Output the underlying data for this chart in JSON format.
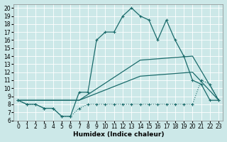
{
  "xlabel": "Humidex (Indice chaleur)",
  "background_color": "#cce8e8",
  "grid_color": "#b8d8d8",
  "line_color": "#1a6b6b",
  "xlim": [
    -0.5,
    23.5
  ],
  "ylim": [
    6,
    20.5
  ],
  "xticks": [
    0,
    1,
    2,
    3,
    4,
    5,
    6,
    7,
    8,
    9,
    10,
    11,
    12,
    13,
    14,
    15,
    16,
    17,
    18,
    19,
    20,
    21,
    22,
    23
  ],
  "yticks": [
    6,
    7,
    8,
    9,
    10,
    11,
    12,
    13,
    14,
    15,
    16,
    17,
    18,
    19,
    20
  ],
  "curve1_x": [
    0,
    1,
    2,
    3,
    4,
    5,
    6,
    7,
    8,
    9,
    10,
    11,
    12,
    13,
    14,
    15,
    16,
    17,
    18,
    19,
    20,
    21,
    22,
    23
  ],
  "curve1_y": [
    8.5,
    8.0,
    8.0,
    7.5,
    7.5,
    6.5,
    6.5,
    9.5,
    9.5,
    16.0,
    17.0,
    17.0,
    19.0,
    20.0,
    19.0,
    18.5,
    16.0,
    18.5,
    16.0,
    14.0,
    11.0,
    10.5,
    8.5,
    8.5
  ],
  "curve2_x": [
    0,
    1,
    2,
    3,
    4,
    5,
    6,
    7,
    8,
    9,
    10,
    11,
    12,
    13,
    14,
    15,
    16,
    17,
    18,
    19,
    20,
    21,
    22,
    23
  ],
  "curve2_y": [
    8.5,
    8.0,
    8.0,
    7.5,
    7.5,
    6.5,
    6.5,
    7.5,
    8.0,
    8.0,
    8.0,
    8.0,
    8.0,
    8.0,
    8.0,
    8.0,
    8.0,
    8.0,
    8.0,
    8.0,
    8.0,
    11.0,
    10.5,
    8.5
  ],
  "curve3_x": [
    0,
    23
  ],
  "curve3_y": [
    8.5,
    8.5
  ],
  "line_upper_x": [
    0,
    7,
    14,
    20,
    23
  ],
  "line_upper_y": [
    8.5,
    8.5,
    13.5,
    14.0,
    8.5
  ],
  "line_lower_x": [
    0,
    7,
    14,
    20,
    23
  ],
  "line_lower_y": [
    8.5,
    8.5,
    11.5,
    12.0,
    8.5
  ]
}
